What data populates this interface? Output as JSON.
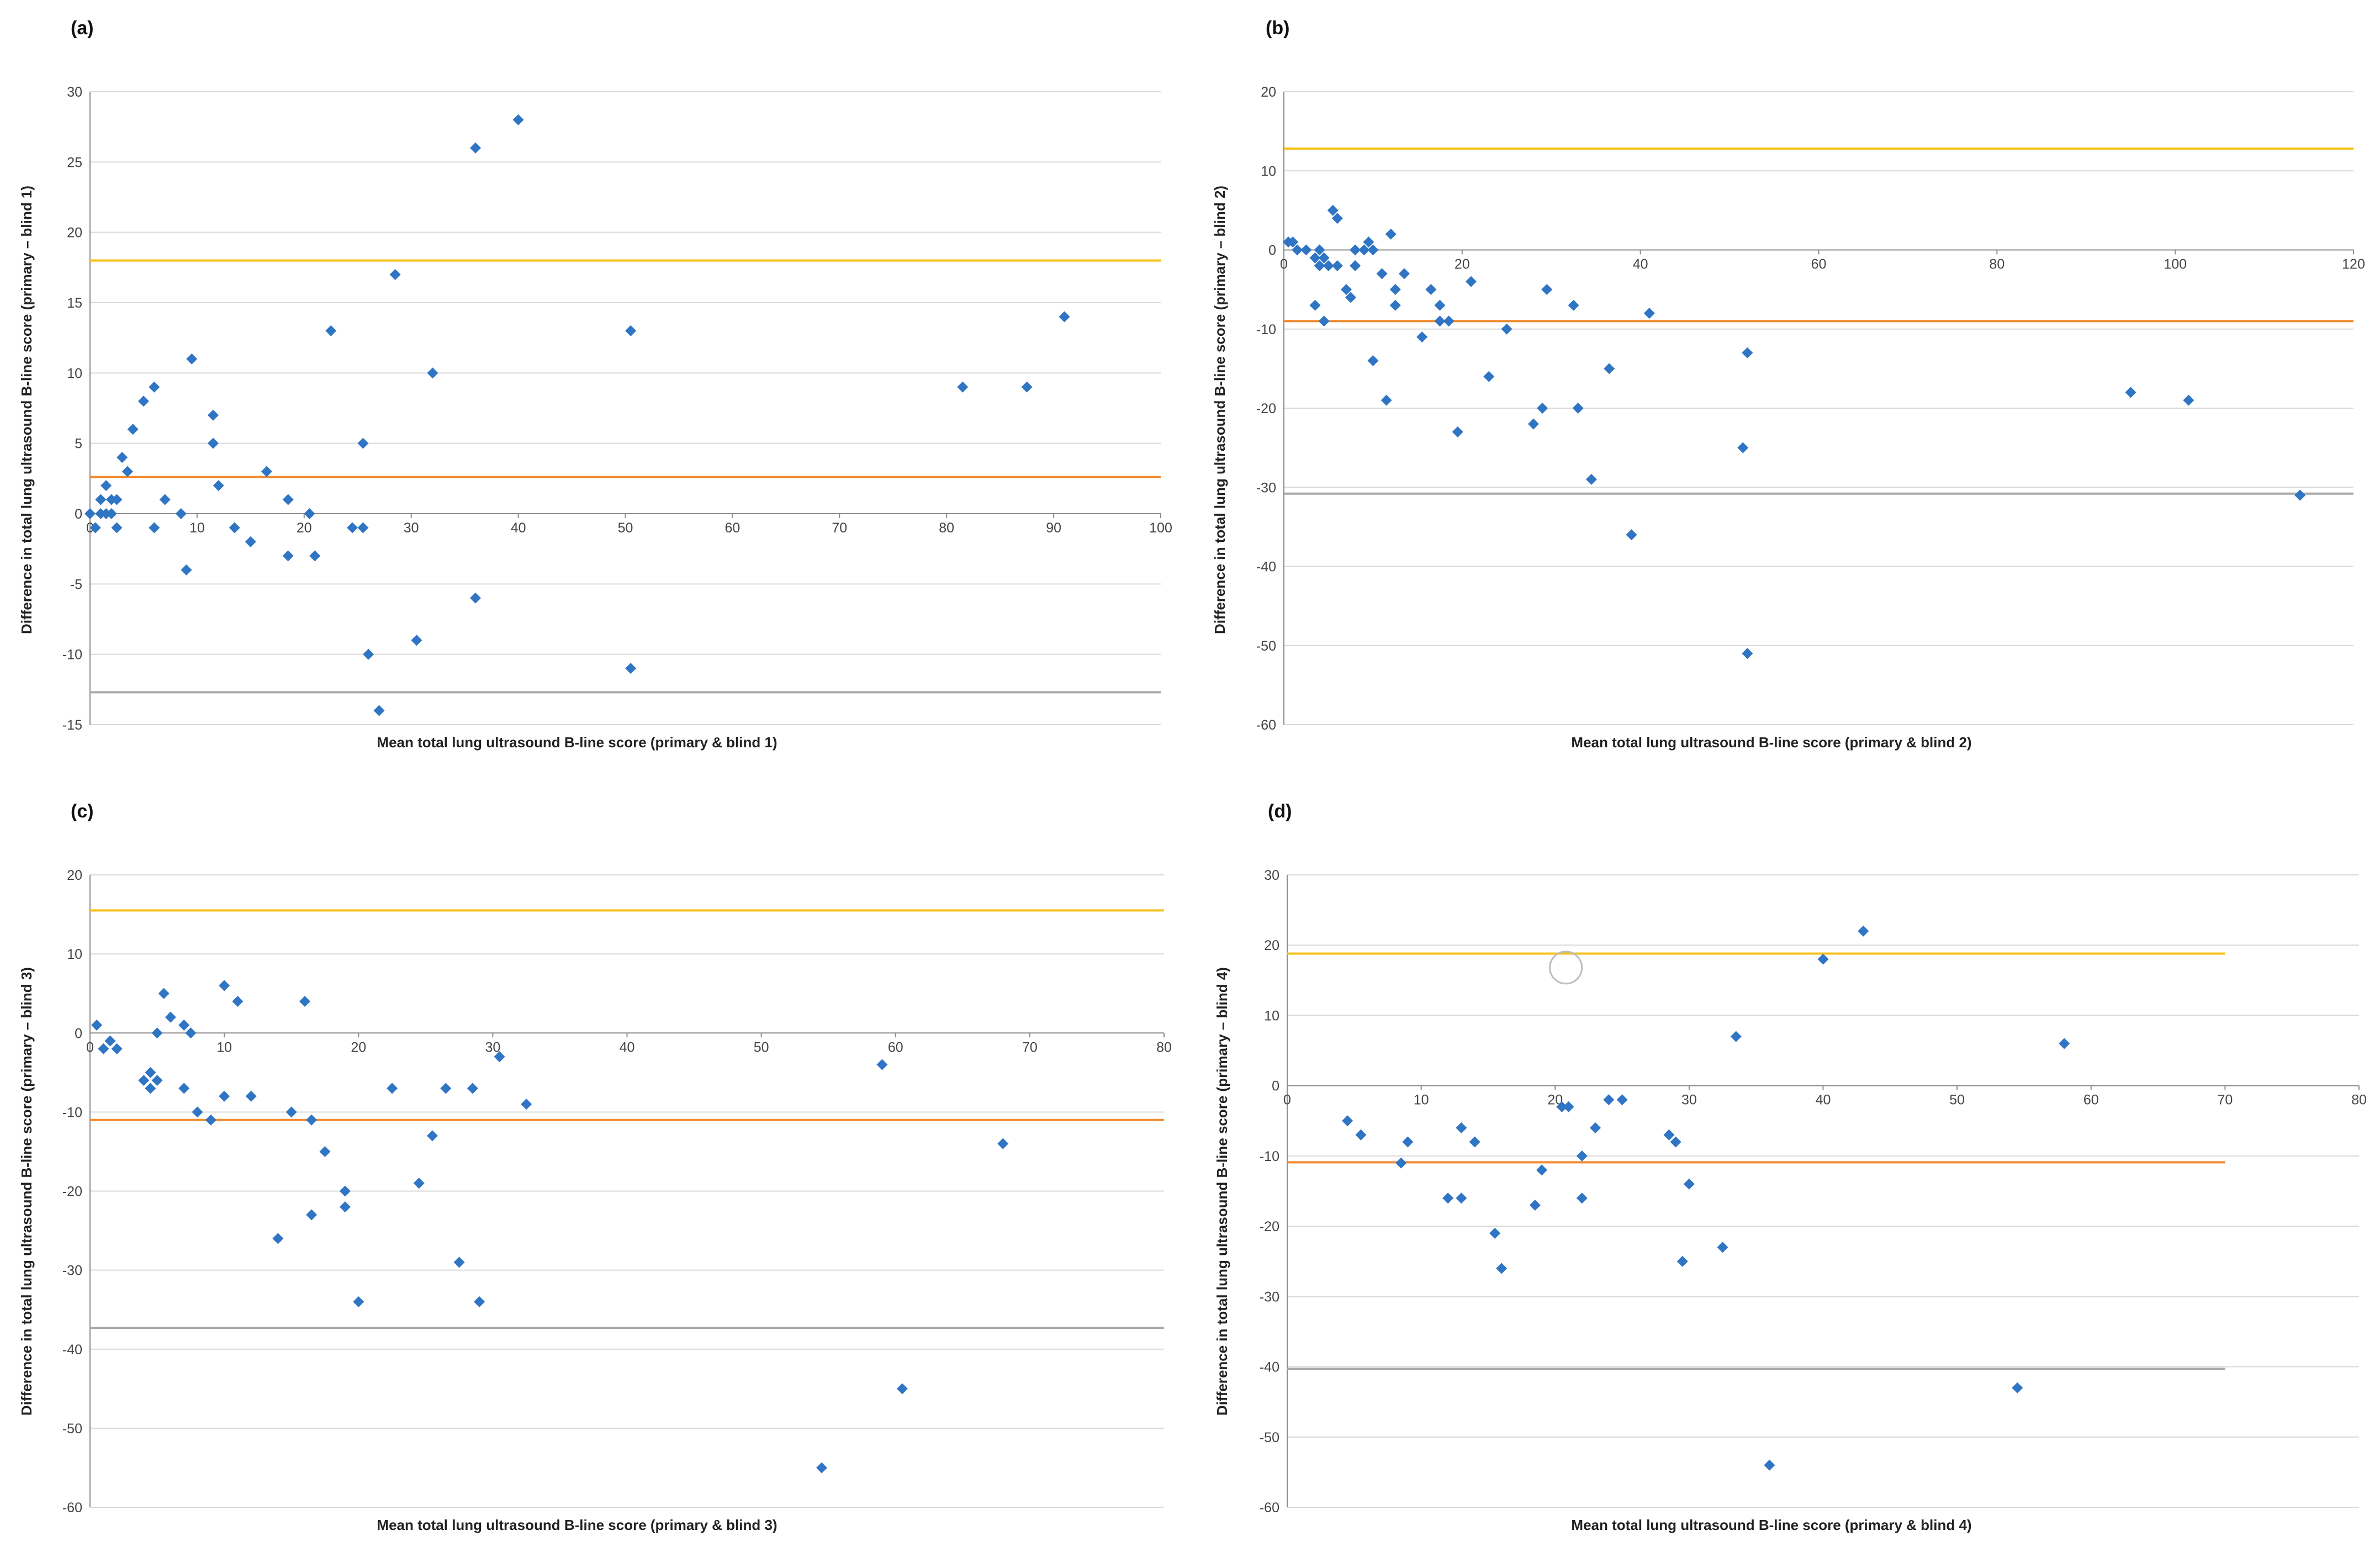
{
  "colors": {
    "point": "#2F75C4",
    "mean_line": "#F28A2E",
    "upper_loa": "#F5C11A",
    "lower_loa": "#A8A8A8",
    "grid": "#D9D9D9",
    "axis": "#8C8C8C"
  },
  "chart_data": [
    {
      "panel": "(a)",
      "type": "scatter",
      "xlabel": "Mean total lung ultrasound B-line score (primary & blind 1)",
      "ylabel": "Difference in total lung ultrasound B-line score (primary – blind 1)",
      "xlim": [
        0,
        100
      ],
      "ylim": [
        -15,
        30
      ],
      "xticks": [
        0,
        10,
        20,
        30,
        40,
        50,
        60,
        70,
        80,
        90,
        100
      ],
      "yticks": [
        -15,
        -10,
        -5,
        0,
        5,
        10,
        15,
        20,
        25,
        30
      ],
      "ref_lines": {
        "upper_loa": 18,
        "mean": 2.6,
        "lower_loa": -12.7
      },
      "line_xmax": 100,
      "points": [
        [
          0,
          0
        ],
        [
          0.5,
          -1
        ],
        [
          1,
          0
        ],
        [
          1,
          1
        ],
        [
          1.5,
          2
        ],
        [
          1.5,
          0
        ],
        [
          2,
          1
        ],
        [
          2,
          0
        ],
        [
          2.5,
          1
        ],
        [
          2.5,
          -1
        ],
        [
          3,
          4
        ],
        [
          3.5,
          3
        ],
        [
          4,
          6
        ],
        [
          5,
          8
        ],
        [
          6,
          -1
        ],
        [
          6,
          9
        ],
        [
          7,
          1
        ],
        [
          8.5,
          0
        ],
        [
          9,
          -4
        ],
        [
          9.5,
          11
        ],
        [
          11.5,
          7
        ],
        [
          11.5,
          5
        ],
        [
          12,
          2
        ],
        [
          13.5,
          -1
        ],
        [
          15,
          -2
        ],
        [
          16.5,
          3
        ],
        [
          18.5,
          1
        ],
        [
          18.5,
          -3
        ],
        [
          20.5,
          0
        ],
        [
          21,
          -3
        ],
        [
          22.5,
          13
        ],
        [
          24.5,
          -1
        ],
        [
          25.5,
          -1
        ],
        [
          25.5,
          5
        ],
        [
          26,
          -10
        ],
        [
          27,
          -14
        ],
        [
          28.5,
          17
        ],
        [
          30.5,
          -9
        ],
        [
          32,
          10
        ],
        [
          36,
          26
        ],
        [
          36,
          -6
        ],
        [
          40,
          28
        ],
        [
          50.5,
          13
        ],
        [
          50.5,
          -11
        ],
        [
          81.5,
          9
        ],
        [
          87.5,
          9
        ],
        [
          91,
          14
        ]
      ]
    },
    {
      "panel": "(b)",
      "type": "scatter",
      "xlabel": "Mean total lung ultrasound B-line score (primary & blind 2)",
      "ylabel": "Difference in total lung ultrasound B-line score (primary – blind 2)",
      "xlim": [
        0,
        120
      ],
      "ylim": [
        -60,
        20
      ],
      "xticks": [
        0,
        20,
        40,
        60,
        80,
        100,
        120
      ],
      "yticks": [
        -60,
        -50,
        -40,
        -30,
        -20,
        -10,
        0,
        10,
        20
      ],
      "ref_lines": {
        "upper_loa": 12.8,
        "mean": -9.0,
        "lower_loa": -30.8
      },
      "line_xmax": 120,
      "points": [
        [
          0.5,
          1
        ],
        [
          1,
          1
        ],
        [
          1.5,
          0
        ],
        [
          2.5,
          0
        ],
        [
          3.5,
          -1
        ],
        [
          3.5,
          -7
        ],
        [
          4,
          0
        ],
        [
          4,
          -2
        ],
        [
          4.5,
          -1
        ],
        [
          4.5,
          -9
        ],
        [
          5,
          -2
        ],
        [
          5.5,
          5
        ],
        [
          6,
          4
        ],
        [
          6,
          -2
        ],
        [
          7,
          -5
        ],
        [
          7.5,
          -6
        ],
        [
          8,
          -2
        ],
        [
          8,
          0
        ],
        [
          9,
          0
        ],
        [
          9.5,
          1
        ],
        [
          10,
          -14
        ],
        [
          10,
          0
        ],
        [
          11,
          -3
        ],
        [
          11.5,
          -19
        ],
        [
          12,
          2
        ],
        [
          12.5,
          -5
        ],
        [
          12.5,
          -7
        ],
        [
          13.5,
          -3
        ],
        [
          15.5,
          -11
        ],
        [
          16.5,
          -5
        ],
        [
          17.5,
          -7
        ],
        [
          17.5,
          -9
        ],
        [
          18.5,
          -9
        ],
        [
          19.5,
          -23
        ],
        [
          21,
          -4
        ],
        [
          23,
          -16
        ],
        [
          25,
          -10
        ],
        [
          28,
          -22
        ],
        [
          29,
          -20
        ],
        [
          29.5,
          -5
        ],
        [
          32.5,
          -7
        ],
        [
          33,
          -20
        ],
        [
          34.5,
          -29
        ],
        [
          36.5,
          -15
        ],
        [
          39,
          -36
        ],
        [
          41,
          -8
        ],
        [
          51.5,
          -25
        ],
        [
          52,
          -13
        ],
        [
          52,
          -51
        ],
        [
          95,
          -18
        ],
        [
          101.5,
          -19
        ],
        [
          114,
          -31
        ]
      ]
    },
    {
      "panel": "(c)",
      "type": "scatter",
      "xlabel": "Mean total lung ultrasound B-line score (primary & blind 3)",
      "ylabel": "Difference in total lung ultrasound B-line score (primary – blind 3)",
      "xlim": [
        0,
        80
      ],
      "ylim": [
        -60,
        20
      ],
      "xticks": [
        0,
        10,
        20,
        30,
        40,
        50,
        60,
        70,
        80
      ],
      "yticks": [
        -60,
        -50,
        -40,
        -30,
        -20,
        -10,
        0,
        10,
        20
      ],
      "ref_lines": {
        "upper_loa": 15.5,
        "mean": -11.0,
        "lower_loa": -37.3
      },
      "line_xmax": 80,
      "points": [
        [
          0.5,
          1
        ],
        [
          1,
          -2
        ],
        [
          1.5,
          -1
        ],
        [
          2,
          -2
        ],
        [
          4,
          -6
        ],
        [
          4.5,
          -7
        ],
        [
          4.5,
          -5
        ],
        [
          5,
          0
        ],
        [
          5,
          -6
        ],
        [
          5.5,
          5
        ],
        [
          6,
          2
        ],
        [
          7,
          1
        ],
        [
          7.5,
          0
        ],
        [
          7,
          -7
        ],
        [
          8,
          -10
        ],
        [
          9,
          -11
        ],
        [
          10,
          6
        ],
        [
          10,
          -8
        ],
        [
          11,
          4
        ],
        [
          12,
          -8
        ],
        [
          14,
          -26
        ],
        [
          15,
          -10
        ],
        [
          16,
          4
        ],
        [
          16.5,
          -11
        ],
        [
          16.5,
          -23
        ],
        [
          17.5,
          -15
        ],
        [
          19,
          -20
        ],
        [
          19,
          -22
        ],
        [
          20,
          -34
        ],
        [
          22.5,
          -7
        ],
        [
          24.5,
          -19
        ],
        [
          25.5,
          -13
        ],
        [
          26.5,
          -7
        ],
        [
          27.5,
          -29
        ],
        [
          28.5,
          -7
        ],
        [
          29,
          -34
        ],
        [
          30.5,
          -3
        ],
        [
          32.5,
          -9
        ],
        [
          54.5,
          -55
        ],
        [
          59,
          -4
        ],
        [
          60.5,
          -45
        ],
        [
          68,
          -14
        ]
      ]
    },
    {
      "panel": "(d)",
      "type": "scatter",
      "xlabel": "Mean total lung ultrasound B-line score (primary & blind 4)",
      "ylabel": "Difference in total lung ultrasound B-line score (primary – blind 4)",
      "xlim": [
        0,
        80
      ],
      "ylim": [
        -60,
        30
      ],
      "xticks": [
        0,
        10,
        20,
        30,
        40,
        50,
        60,
        70,
        80
      ],
      "yticks": [
        -60,
        -50,
        -40,
        -30,
        -20,
        -10,
        0,
        10,
        20,
        30
      ],
      "ref_lines": {
        "upper_loa": 18.8,
        "mean": -10.9,
        "lower_loa": -40.3
      },
      "line_xmax": 70,
      "points": [
        [
          4.5,
          -5
        ],
        [
          5.5,
          -7
        ],
        [
          8.5,
          -11
        ],
        [
          9,
          -8
        ],
        [
          12,
          -16
        ],
        [
          13,
          -16
        ],
        [
          13,
          -6
        ],
        [
          14,
          -8
        ],
        [
          15.5,
          -21
        ],
        [
          16,
          -26
        ],
        [
          18.5,
          -17
        ],
        [
          19,
          -12
        ],
        [
          20.5,
          -3
        ],
        [
          21,
          -3
        ],
        [
          22,
          -10
        ],
        [
          22,
          -16
        ],
        [
          23,
          -6
        ],
        [
          24,
          -2
        ],
        [
          25,
          -2
        ],
        [
          28.5,
          -7
        ],
        [
          29,
          -8
        ],
        [
          29.5,
          -25
        ],
        [
          30,
          -14
        ],
        [
          32.5,
          -23
        ],
        [
          33.5,
          7
        ],
        [
          36,
          -54
        ],
        [
          40,
          18
        ],
        [
          43,
          22
        ],
        [
          54.5,
          -43
        ],
        [
          58,
          6
        ]
      ],
      "annotation_circle": [
        20.8,
        16.8
      ]
    }
  ]
}
